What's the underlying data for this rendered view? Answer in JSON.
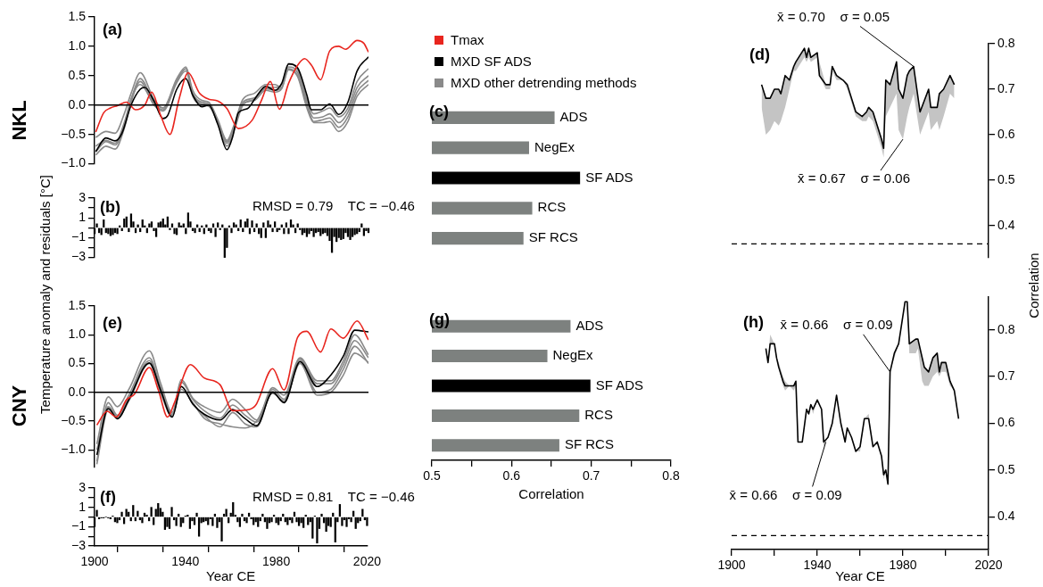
{
  "chart_data": [
    {
      "type": "line",
      "title": "(a)",
      "ylabel": "Temperature anomaly and residuals [°C]",
      "annotations": [
        "NKL"
      ],
      "legend": "right",
      "tick_labels": "y",
      "xlim": [
        1900,
        2020
      ],
      "ylim": [
        -1,
        1.5
      ],
      "xticks": [
        1900,
        1940,
        1980,
        2020
      ],
      "yticks": [
        {
          "value": -1,
          "label": "−1.0"
        },
        {
          "value": -0.5,
          "label": "−0.5"
        },
        {
          "value": 0,
          "label": "0.0"
        },
        0.5,
        {
          "value": 1,
          "label": "1.0"
        },
        1.5
      ],
      "ref_lines": [
        {
          "axis": "y",
          "value": 0,
          "color": "#000000"
        }
      ],
      "series": [
        {
          "name": "Tmax",
          "color": "#e8251e",
          "x": [
            1900.5,
            1904,
            1907,
            1910,
            1914,
            1918,
            1922,
            1925,
            1929,
            1933,
            1937,
            1941,
            1946,
            1950,
            1954,
            1958,
            1963,
            1969,
            1973,
            1977,
            1981,
            1985,
            1989,
            1992,
            1995,
            1999,
            2003,
            2007,
            2010,
            2015,
            2018,
            2020
          ],
          "values": [
            -0.46,
            -0.13,
            -0.05,
            -0.01,
            0.05,
            -0.08,
            0.0,
            0.22,
            -0.18,
            -0.5,
            0.1,
            0.55,
            0.2,
            0.1,
            0.07,
            -0.06,
            -0.4,
            -0.26,
            0.07,
            0.4,
            -0.07,
            0.37,
            0.68,
            0.79,
            0.68,
            0.43,
            0.92,
            1.0,
            0.95,
            1.1,
            1.05,
            0.9
          ]
        },
        {
          "name": "MXD SF ADS",
          "color": "#000000",
          "x": [
            1900.5,
            1905,
            1909,
            1912,
            1916,
            1920,
            1922,
            1926,
            1930,
            1932,
            1936,
            1940,
            1943,
            1947,
            1950,
            1954,
            1958,
            1960.5,
            1963,
            1967,
            1971,
            1975,
            1979,
            1982,
            1985,
            1989,
            1993,
            1995,
            1999,
            2003,
            2007,
            2011,
            2015,
            2020
          ],
          "values": [
            -0.79,
            -0.56,
            -0.61,
            -0.48,
            0.0,
            0.27,
            0.3,
            0.07,
            -0.23,
            -0.18,
            0.27,
            0.45,
            0.17,
            -0.03,
            0.0,
            -0.33,
            -0.76,
            -0.54,
            -0.13,
            -0.06,
            0.15,
            0.32,
            0.25,
            0.37,
            0.7,
            0.63,
            0.17,
            -0.08,
            -0.08,
            0.02,
            -0.16,
            0.05,
            0.58,
            0.82
          ]
        },
        {
          "name": "MXD other detrending methods",
          "color": "#8a8a8a",
          "x": [
            1900.5,
            1905,
            1909,
            1913,
            1916,
            1920,
            1926,
            1930,
            1936,
            1940,
            1943,
            1947,
            1950,
            1954,
            1958,
            1961,
            1965,
            1970,
            1975,
            1979,
            1982,
            1985,
            1989,
            1993,
            1996,
            2000,
            2003,
            2007,
            2011,
            2015,
            2020
          ],
          "values": [
            -0.55,
            -0.45,
            -0.48,
            -0.15,
            0.2,
            0.55,
            0.1,
            -0.05,
            0.45,
            0.65,
            0.25,
            0.08,
            0.05,
            -0.25,
            -0.6,
            -0.35,
            0.1,
            0.2,
            0.35,
            0.35,
            0.3,
            0.7,
            0.6,
            0.1,
            -0.15,
            -0.1,
            -0.05,
            -0.2,
            -0.05,
            0.4,
            0.62
          ]
        },
        {
          "color": "#8a8a8a",
          "x": [
            1900.5,
            1905,
            1909,
            1913,
            1916,
            1920,
            1926,
            1930,
            1936,
            1940,
            1943,
            1947,
            1950,
            1954,
            1958,
            1961,
            1965,
            1970,
            1975,
            1979,
            1982,
            1985,
            1989,
            1993,
            1996,
            2000,
            2003,
            2007,
            2011,
            2015,
            2020
          ],
          "values": [
            -0.7,
            -0.6,
            -0.65,
            -0.3,
            0.1,
            0.45,
            0.05,
            -0.05,
            0.4,
            0.62,
            0.2,
            0.05,
            0.02,
            -0.28,
            -0.65,
            -0.4,
            0.05,
            0.12,
            0.3,
            0.3,
            0.35,
            0.65,
            0.55,
            0.05,
            -0.22,
            -0.2,
            -0.15,
            -0.3,
            -0.12,
            0.3,
            0.5
          ]
        },
        {
          "color": "#8a8a8a",
          "x": [
            1900.5,
            1905,
            1909,
            1913,
            1916,
            1920,
            1926,
            1930,
            1936,
            1940,
            1943,
            1947,
            1950,
            1954,
            1958,
            1961,
            1965,
            1970,
            1975,
            1979,
            1982,
            1985,
            1989,
            1993,
            1996,
            2000,
            2003,
            2007,
            2011,
            2015,
            2020
          ],
          "values": [
            -0.85,
            -0.7,
            -0.75,
            -0.4,
            0.05,
            0.4,
            0.0,
            -0.1,
            0.38,
            0.58,
            0.15,
            0.0,
            -0.02,
            -0.3,
            -0.7,
            -0.45,
            0.0,
            0.1,
            0.28,
            0.25,
            0.3,
            0.62,
            0.5,
            0.0,
            -0.28,
            -0.25,
            -0.22,
            -0.38,
            -0.2,
            0.22,
            0.42
          ]
        },
        {
          "color": "#8a8a8a",
          "x": [
            1900.5,
            1905,
            1909,
            1913,
            1916,
            1920,
            1926,
            1930,
            1936,
            1940,
            1943,
            1947,
            1950,
            1954,
            1958,
            1961,
            1965,
            1970,
            1975,
            1979,
            1982,
            1985,
            1989,
            1993,
            1996,
            2000,
            2003,
            2007,
            2011,
            2015,
            2020
          ],
          "values": [
            -0.8,
            -0.62,
            -0.68,
            -0.35,
            0.1,
            0.35,
            0.02,
            -0.08,
            0.42,
            0.62,
            0.18,
            0.02,
            0.0,
            -0.3,
            -0.62,
            -0.42,
            0.02,
            0.08,
            0.25,
            0.22,
            0.28,
            0.6,
            0.48,
            -0.05,
            -0.3,
            -0.3,
            -0.28,
            -0.45,
            -0.28,
            0.15,
            0.35
          ]
        }
      ]
    },
    {
      "type": "bar",
      "title": "(b)",
      "annotations": [
        "RMSD = 0.79    TC = −0.46"
      ],
      "tick_labels": "y",
      "color": "#000000",
      "xlim": [
        1900,
        2020
      ],
      "ylim": [
        -3,
        3
      ],
      "xticks": [
        1900,
        1940,
        1980,
        2020
      ],
      "yticks": [
        {
          "value": -3,
          "label": "−3"
        },
        {
          "value": -2,
          "label": null
        },
        {
          "value": -1,
          "label": "−1"
        },
        {
          "value": 0,
          "label": null
        },
        1,
        {
          "value": 2,
          "label": null
        },
        3
      ],
      "x": [
        1900,
        1901,
        1902,
        1903,
        1904,
        1905,
        1906,
        1907,
        1908,
        1909,
        1910,
        1911,
        1912,
        1913,
        1914,
        1915,
        1916,
        1917,
        1918,
        1919,
        1920,
        1921,
        1922,
        1923,
        1924,
        1925,
        1926,
        1927,
        1928,
        1929,
        1930,
        1931,
        1932,
        1933,
        1934,
        1935,
        1936,
        1937,
        1938,
        1939,
        1940,
        1941,
        1942,
        1943,
        1944,
        1945,
        1946,
        1947,
        1948,
        1949,
        1950,
        1951,
        1952,
        1953,
        1954,
        1955,
        1956,
        1957,
        1958,
        1959,
        1960,
        1961,
        1962,
        1963,
        1964,
        1965,
        1966,
        1967,
        1968,
        1969,
        1970,
        1971,
        1972,
        1973,
        1974,
        1975,
        1976,
        1977,
        1978,
        1979,
        1980,
        1981,
        1982,
        1983,
        1984,
        1985,
        1986,
        1987,
        1988,
        1989,
        1990,
        1991,
        1992,
        1993,
        1994,
        1995,
        1996,
        1997,
        1998,
        1999,
        2000,
        2001,
        2002,
        2003,
        2004,
        2005,
        2006,
        2007,
        2008,
        2009,
        2010,
        2011,
        2012,
        2013,
        2014,
        2015,
        2016,
        2017,
        2018,
        2019,
        2020
      ],
      "values": [
        -0.6,
        0.4,
        -0.5,
        -0.7,
        0.8,
        -0.5,
        -0.6,
        -0.8,
        -0.7,
        -0.5,
        -0.6,
        0.2,
        -0.3,
        0.9,
        1.1,
        -0.4,
        1.4,
        0.6,
        -0.5,
        0.3,
        -0.4,
        0.8,
        0.2,
        -0.5,
        0.4,
        0.6,
        -0.3,
        -0.9,
        0.5,
        0.6,
        0.9,
        0.3,
        1.1,
        -0.2,
        0.4,
        -0.6,
        -0.7,
        0.5,
        0.2,
        0.4,
        -0.6,
        1.5,
        0.6,
        -0.3,
        -0.5,
        0.3,
        -0.4,
        0.2,
        -0.6,
        0.3,
        -0.3,
        -0.5,
        0.4,
        -0.9,
        0.5,
        -0.2,
        0.3,
        -3.0,
        -2.0,
        0.2,
        -0.5,
        0.5,
        0.3,
        -0.3,
        0.8,
        -0.4,
        0.6,
        0.9,
        -0.6,
        0.7,
        -0.4,
        0.4,
        -0.6,
        -1.0,
        0.5,
        -1.0,
        0.7,
        0.3,
        -0.4,
        0.6,
        -0.4,
        -0.2,
        0.3,
        -0.6,
        0.5,
        -0.6,
        0.8,
        0.3,
        -0.5,
        0.4,
        -0.2,
        -0.7,
        -0.5,
        -0.9,
        -0.6,
        -0.3,
        -0.9,
        -0.5,
        -0.4,
        -0.8,
        -0.6,
        -0.5,
        -0.8,
        -1.3,
        -2.5,
        -0.9,
        -1.4,
        -1.0,
        -1.2,
        -1.1,
        -0.5,
        -0.9,
        -1.2,
        -0.9,
        -0.7,
        -0.6,
        -0.4,
        0.4,
        -0.8,
        -0.3,
        -0.5
      ]
    },
    {
      "type": "bar",
      "orientation": "horizontal",
      "title": "(c)",
      "tick_labels": "y",
      "categories": [
        "ADS",
        "NegEx",
        "SF ADS",
        "RCS",
        "SF RCS"
      ],
      "values": [
        0.654,
        0.622,
        0.686,
        0.626,
        0.615
      ],
      "colors": [
        "#7d817f",
        "#7d817f",
        "#000000",
        "#7d817f",
        "#7d817f"
      ],
      "xlim": [
        0.5,
        0.8
      ],
      "xticks": [
        0.5,
        0.6,
        0.7,
        0.8
      ]
    },
    {
      "type": "line",
      "title": "(d)",
      "ylabel": "Correlation",
      "tick_labels": "y",
      "xlim": [
        1900,
        2020
      ],
      "ylim": [
        0.33,
        0.8
      ],
      "yticks": [
        0.4,
        0.5,
        0.6,
        0.7,
        0.8
      ],
      "xticks": [
        1900,
        1940,
        1980,
        2020
      ],
      "ref_lines": [
        {
          "axis": "y",
          "value": 0.36,
          "line_style": "dashed",
          "color": "#000000"
        }
      ],
      "annotations": [
        {
          "text": "x̄ = 0.70    σ = 0.05",
          "x": 1985,
          "y": 0.75
        },
        {
          "text": "x̄ = 0.67    σ = 0.06",
          "x": 1980,
          "y": 0.59
        }
      ],
      "x": [
        1914,
        1916,
        1918,
        1920,
        1922,
        1923,
        1925,
        1927,
        1929,
        1930,
        1934,
        1935,
        1936,
        1937,
        1940,
        1941,
        1944,
        1946,
        1947,
        1949,
        1952,
        1954,
        1958,
        1961,
        1963,
        1964,
        1966,
        1968,
        1970,
        1971,
        1972,
        1974,
        1977,
        1978,
        1980,
        1982,
        1983,
        1985,
        1988,
        1992,
        1993,
        1996,
        1997,
        1999,
        2002,
        2004
      ],
      "series": [
        {
          "color": "#000000",
          "values": [
            0.71,
            0.68,
            0.68,
            0.7,
            0.7,
            0.69,
            0.73,
            0.72,
            0.75,
            0.76,
            0.79,
            0.77,
            0.79,
            0.77,
            0.78,
            0.73,
            0.71,
            0.71,
            0.75,
            0.73,
            0.72,
            0.71,
            0.65,
            0.64,
            0.65,
            0.66,
            0.65,
            0.62,
            0.59,
            0.57,
            0.72,
            0.71,
            0.76,
            0.7,
            0.68,
            0.73,
            0.74,
            0.75,
            0.65,
            0.7,
            0.66,
            0.66,
            0.69,
            0.7,
            0.73,
            0.71
          ],
          "lower": [
            0.66,
            0.6,
            0.61,
            0.63,
            0.62,
            0.63,
            0.66,
            0.7,
            0.74,
            0.74,
            0.77,
            0.76,
            0.77,
            0.76,
            0.77,
            0.73,
            0.7,
            0.7,
            0.74,
            0.72,
            0.72,
            0.7,
            0.64,
            0.63,
            0.63,
            0.64,
            0.63,
            0.6,
            0.57,
            0.55,
            0.64,
            0.66,
            0.69,
            0.61,
            0.59,
            0.64,
            0.66,
            0.69,
            0.6,
            0.65,
            0.61,
            0.63,
            0.61,
            0.64,
            0.69,
            0.68
          ],
          "upper": [
            0.71,
            0.68,
            0.68,
            0.7,
            0.7,
            0.69,
            0.73,
            0.72,
            0.75,
            0.76,
            0.79,
            0.77,
            0.79,
            0.77,
            0.78,
            0.76,
            0.71,
            0.71,
            0.75,
            0.73,
            0.72,
            0.71,
            0.65,
            0.64,
            0.65,
            0.66,
            0.65,
            0.62,
            0.59,
            0.57,
            0.72,
            0.71,
            0.76,
            0.7,
            0.68,
            0.73,
            0.74,
            0.75,
            0.65,
            0.7,
            0.66,
            0.66,
            0.69,
            0.7,
            0.73,
            0.71
          ]
        }
      ]
    },
    {
      "type": "line",
      "title": "(e)",
      "annotations": [
        "CNY"
      ],
      "tick_labels": "y",
      "xlim": [
        1900,
        2020
      ],
      "ylim": [
        -1.3,
        1.5
      ],
      "xticks": [
        1900,
        1940,
        1980,
        2020
      ],
      "yticks": [
        {
          "value": -1,
          "label": "−1.0"
        },
        {
          "value": -0.5,
          "label": "−0.5"
        },
        {
          "value": 0,
          "label": "0.0"
        },
        0.5,
        {
          "value": 1,
          "label": "1.0"
        },
        1.5
      ],
      "ref_lines": [
        {
          "axis": "y",
          "value": 0,
          "color": "#000000"
        }
      ],
      "series": [
        {
          "color": "#e8251e",
          "x": [
            1901,
            1905.5,
            1909.5,
            1914,
            1917.5,
            1924,
            1928,
            1932,
            1935,
            1942,
            1948,
            1955,
            1960.5,
            1966,
            1970.5,
            1978,
            1983,
            1989,
            1993,
            1999,
            2003.5,
            2009,
            2015,
            2020
          ],
          "values": [
            -0.57,
            -0.33,
            -0.43,
            -0.13,
            -0.03,
            0.43,
            0.03,
            -0.43,
            -0.18,
            0.48,
            0.25,
            0.13,
            -0.32,
            -0.31,
            -0.23,
            0.41,
            0.04,
            0.96,
            1.06,
            0.7,
            1.1,
            0.94,
            1.24,
            0.91
          ]
        },
        {
          "color": "#000000",
          "x": [
            1901,
            1906,
            1910,
            1915,
            1924,
            1929,
            1934,
            1938,
            1943,
            1948,
            1955,
            1960.5,
            1966,
            1971,
            1978,
            1983,
            1990,
            1997.5,
            2003.5,
            2009,
            2014,
            2020
          ],
          "values": [
            -1.09,
            -0.28,
            -0.46,
            -0.13,
            0.51,
            0.03,
            -0.43,
            0.1,
            -0.2,
            -0.38,
            -0.48,
            -0.3,
            -0.46,
            -0.58,
            0.0,
            -0.18,
            0.53,
            0.1,
            0.3,
            0.63,
            1.08,
            1.05
          ]
        },
        {
          "color": "#8a8a8a",
          "x": [
            1901,
            1906,
            1910,
            1915,
            1924,
            1929,
            1934,
            1938,
            1943,
            1948,
            1955,
            1960.5,
            1966,
            1971,
            1978,
            1983,
            1990,
            1997.5,
            2003.5,
            2009,
            2014,
            2020
          ],
          "values": [
            -0.9,
            -0.08,
            -0.25,
            0.05,
            0.72,
            0.15,
            -0.35,
            0.22,
            -0.1,
            -0.25,
            -0.35,
            -0.12,
            -0.3,
            -0.48,
            0.08,
            -0.05,
            0.6,
            0.2,
            0.2,
            0.55,
            1.0,
            0.65
          ]
        },
        {
          "color": "#8a8a8a",
          "x": [
            1901,
            1906,
            1910,
            1915,
            1924,
            1929,
            1934,
            1938,
            1943,
            1948,
            1955,
            1960.5,
            1966,
            1971,
            1978,
            1983,
            1990,
            1997.5,
            2003.5,
            2009,
            2014,
            2020
          ],
          "values": [
            -1.2,
            -0.18,
            -0.4,
            -0.05,
            0.6,
            0.08,
            -0.4,
            0.18,
            -0.12,
            -0.32,
            -0.45,
            -0.22,
            -0.4,
            -0.52,
            0.05,
            -0.12,
            0.58,
            0.15,
            0.15,
            0.48,
            0.9,
            0.6
          ]
        },
        {
          "color": "#8a8a8a",
          "x": [
            1901,
            1906,
            1910,
            1915,
            1924,
            1929,
            1934,
            1938,
            1943,
            1948,
            1955,
            1960.5,
            1966,
            1971,
            1978,
            1983,
            1990,
            1997.5,
            2003.5,
            2009,
            2014,
            2020
          ],
          "values": [
            -1.25,
            -0.3,
            -0.45,
            -0.15,
            0.5,
            -0.02,
            -0.42,
            0.1,
            -0.2,
            -0.4,
            -0.6,
            -0.35,
            -0.55,
            -0.6,
            0.02,
            -0.18,
            0.55,
            0.0,
            0.05,
            0.4,
            0.8,
            0.5
          ]
        },
        {
          "color": "#8a8a8a",
          "x": [
            1901,
            1906,
            1910,
            1915,
            1924,
            1929,
            1934,
            1938,
            1943,
            1948,
            1955,
            1960.5,
            1966,
            1971,
            1978,
            1983,
            1990,
            1997.5,
            2003.5,
            2009,
            2014,
            2020
          ],
          "values": [
            -1.0,
            -0.25,
            -0.42,
            -0.1,
            0.55,
            0.05,
            -0.38,
            0.05,
            -0.18,
            -0.45,
            -0.55,
            -0.6,
            -0.62,
            -0.5,
            -0.02,
            -0.15,
            0.5,
            -0.05,
            0.0,
            0.3,
            0.68,
            0.52
          ]
        }
      ]
    },
    {
      "type": "bar",
      "title": "(f)",
      "annotations": [
        "RMSD = 0.81    TC = −0.46"
      ],
      "xlabel": "Year CE",
      "color": "#000000",
      "xlim": [
        1900,
        2020
      ],
      "ylim": [
        -3,
        3
      ],
      "xticks": [
        1900,
        {
          "value": 1920,
          "label": null
        },
        1940,
        {
          "value": 1960,
          "label": null
        },
        1980,
        {
          "value": 2000,
          "label": null
        },
        2020
      ],
      "yticks": [
        {
          "value": -3,
          "label": "−3"
        },
        {
          "value": -2,
          "label": null
        },
        {
          "value": -1,
          "label": "−1"
        },
        {
          "value": 0,
          "label": null
        },
        1,
        {
          "value": 2,
          "label": null
        },
        3
      ],
      "x": [
        1900,
        1901,
        1902,
        1903,
        1904,
        1905,
        1906,
        1907,
        1908,
        1909,
        1910,
        1911,
        1912,
        1913,
        1914,
        1915,
        1916,
        1917,
        1918,
        1919,
        1920,
        1921,
        1922,
        1923,
        1924,
        1925,
        1926,
        1927,
        1928,
        1929,
        1930,
        1931,
        1932,
        1933,
        1934,
        1935,
        1936,
        1937,
        1938,
        1939,
        1940,
        1941,
        1942,
        1943,
        1944,
        1945,
        1946,
        1947,
        1948,
        1949,
        1950,
        1951,
        1952,
        1953,
        1954,
        1955,
        1956,
        1957,
        1958,
        1959,
        1960,
        1961,
        1962,
        1963,
        1964,
        1965,
        1966,
        1967,
        1968,
        1969,
        1970,
        1971,
        1972,
        1973,
        1974,
        1975,
        1976,
        1977,
        1978,
        1979,
        1980,
        1981,
        1982,
        1983,
        1984,
        1985,
        1986,
        1987,
        1988,
        1989,
        1990,
        1991,
        1992,
        1993,
        1994,
        1995,
        1996,
        1997,
        1998,
        1999,
        2000,
        2001,
        2002,
        2003,
        2004,
        2005,
        2006,
        2007,
        2008,
        2009,
        2010,
        2011,
        2012,
        2013,
        2014,
        2015,
        2016,
        2017,
        2018,
        2019,
        2020
      ],
      "values": [
        -1.0,
        0.7,
        -0.2,
        -0.1,
        -0.1,
        0.0,
        -0.1,
        -0.2,
        0.1,
        -0.5,
        -0.6,
        -0.3,
        0.5,
        -0.7,
        0.8,
        0.5,
        -0.4,
        1.2,
        -0.4,
        0.6,
        -0.3,
        -0.6,
        0.4,
        0.2,
        -0.4,
        1.0,
        -0.8,
        0.8,
        1.4,
        0.9,
        0.5,
        -1.3,
        -1.0,
        -1.2,
        1.0,
        -0.3,
        -0.9,
        0.3,
        -1.0,
        -0.6,
        0.1,
        0.2,
        -1.2,
        -0.4,
        -0.8,
        0.4,
        -2.0,
        -0.6,
        -0.5,
        -0.4,
        -0.8,
        -0.2,
        -0.9,
        0.3,
        -1.1,
        -0.5,
        -2.5,
        0.3,
        0.8,
        -0.6,
        0.4,
        1.5,
        0.2,
        -0.5,
        -1.0,
        0.3,
        -0.4,
        -0.6,
        0.4,
        -0.2,
        -0.8,
        -0.5,
        -1.0,
        -0.4,
        0.3,
        -0.5,
        -1.2,
        -0.6,
        -0.5,
        0.2,
        -0.6,
        -0.8,
        -0.4,
        0.3,
        -0.5,
        -0.8,
        -0.3,
        -0.6,
        0.5,
        -0.5,
        -0.9,
        -0.6,
        -1.1,
        0.2,
        -0.8,
        -0.5,
        -2.2,
        0.1,
        -2.7,
        -1.2,
        0.3,
        -0.6,
        -1.5,
        -0.9,
        -1.0,
        0.4,
        -2.6,
        -0.5,
        1.3,
        -0.9,
        -0.3,
        -1.0,
        -0.2,
        -0.5,
        0.6,
        -1.2,
        -0.6,
        -0.4,
        0.8,
        -0.3,
        -0.9
      ]
    },
    {
      "type": "bar",
      "orientation": "horizontal",
      "title": "(g)",
      "xlabel": "Correlation",
      "categories": [
        "ADS",
        "NegEx",
        "SF ADS",
        "RCS",
        "SF RCS"
      ],
      "values": [
        0.674,
        0.645,
        0.699,
        0.685,
        0.66
      ],
      "colors": [
        "#7d817f",
        "#7d817f",
        "#000000",
        "#7d817f",
        "#7d817f"
      ],
      "xlim": [
        0.5,
        0.8
      ],
      "xticks": [
        0.5,
        {
          "value": 0.55,
          "label": null
        },
        0.6,
        {
          "value": 0.65,
          "label": null
        },
        0.7,
        {
          "value": 0.75,
          "label": null
        },
        0.8
      ]
    },
    {
      "type": "line",
      "title": "(h)",
      "xlabel": "Year CE",
      "xlim": [
        1900,
        2020
      ],
      "ylim": [
        0.33,
        0.87
      ],
      "yticks": [
        0.4,
        0.5,
        0.6,
        0.7,
        0.8
      ],
      "xticks": [
        1900,
        {
          "value": 1920,
          "label": null
        },
        1940,
        {
          "value": 1960,
          "label": null
        },
        1980,
        {
          "value": 2000,
          "label": null
        },
        2020
      ],
      "ref_lines": [
        {
          "axis": "y",
          "value": 0.36,
          "line_style": "dashed",
          "color": "#000000"
        }
      ],
      "annotations": [
        {
          "text": "x̄ = 0.66    σ = 0.09",
          "x": 1974,
          "y": 0.71
        },
        {
          "text": "x̄ = 0.66    σ = 0.09",
          "x": 1944,
          "y": 0.56
        }
      ],
      "x": [
        1916,
        1917,
        1918,
        1920,
        1921,
        1922,
        1924,
        1925,
        1927,
        1929,
        1930,
        1931,
        1933,
        1935,
        1936,
        1937,
        1938,
        1940,
        1942,
        1943,
        1945,
        1947,
        1949,
        1951,
        1953,
        1954,
        1956,
        1958,
        1960,
        1962,
        1964,
        1966,
        1968,
        1970,
        1971,
        1972,
        1973,
        1974,
        1976,
        1978,
        1979,
        1981,
        1982,
        1983,
        1986,
        1987,
        1989,
        1990,
        1992,
        1994,
        1996,
        1997,
        1998,
        2000,
        2002,
        2004,
        2006
      ],
      "series": [
        {
          "color": "#000000",
          "values": [
            0.76,
            0.73,
            0.77,
            0.77,
            0.74,
            0.72,
            0.69,
            0.68,
            0.68,
            0.68,
            0.69,
            0.56,
            0.56,
            0.63,
            0.62,
            0.64,
            0.63,
            0.65,
            0.63,
            0.56,
            0.57,
            0.6,
            0.66,
            0.6,
            0.56,
            0.59,
            0.57,
            0.54,
            0.55,
            0.61,
            0.61,
            0.55,
            0.56,
            0.53,
            0.49,
            0.5,
            0.47,
            0.71,
            0.75,
            0.77,
            0.8,
            0.86,
            0.86,
            0.77,
            0.78,
            0.78,
            0.74,
            0.72,
            0.71,
            0.74,
            0.75,
            0.71,
            0.73,
            0.73,
            0.69,
            0.67,
            0.61
          ],
          "lower": [
            0.76,
            0.73,
            0.77,
            0.77,
            0.74,
            0.72,
            0.68,
            0.67,
            0.68,
            0.67,
            0.68,
            0.56,
            0.56,
            0.63,
            0.62,
            0.64,
            0.62,
            0.65,
            0.63,
            0.55,
            0.57,
            0.6,
            0.66,
            0.6,
            0.56,
            0.59,
            0.57,
            0.54,
            0.54,
            0.61,
            0.61,
            0.55,
            0.56,
            0.53,
            0.48,
            0.5,
            0.47,
            0.71,
            0.74,
            0.77,
            0.8,
            0.86,
            0.86,
            0.75,
            0.75,
            0.76,
            0.69,
            0.68,
            0.68,
            0.7,
            0.71,
            0.7,
            0.71,
            0.71,
            0.68,
            0.67,
            0.61
          ],
          "upper": [
            0.76,
            0.73,
            0.79,
            0.77,
            0.74,
            0.73,
            0.7,
            0.69,
            0.68,
            0.68,
            0.69,
            0.56,
            0.56,
            0.63,
            0.62,
            0.64,
            0.63,
            0.65,
            0.63,
            0.56,
            0.57,
            0.6,
            0.66,
            0.6,
            0.56,
            0.59,
            0.57,
            0.54,
            0.55,
            0.61,
            0.62,
            0.55,
            0.56,
            0.53,
            0.49,
            0.5,
            0.47,
            0.71,
            0.75,
            0.77,
            0.8,
            0.86,
            0.86,
            0.77,
            0.78,
            0.78,
            0.74,
            0.72,
            0.71,
            0.74,
            0.75,
            0.71,
            0.73,
            0.73,
            0.69,
            0.67,
            0.61
          ]
        }
      ]
    }
  ]
}
